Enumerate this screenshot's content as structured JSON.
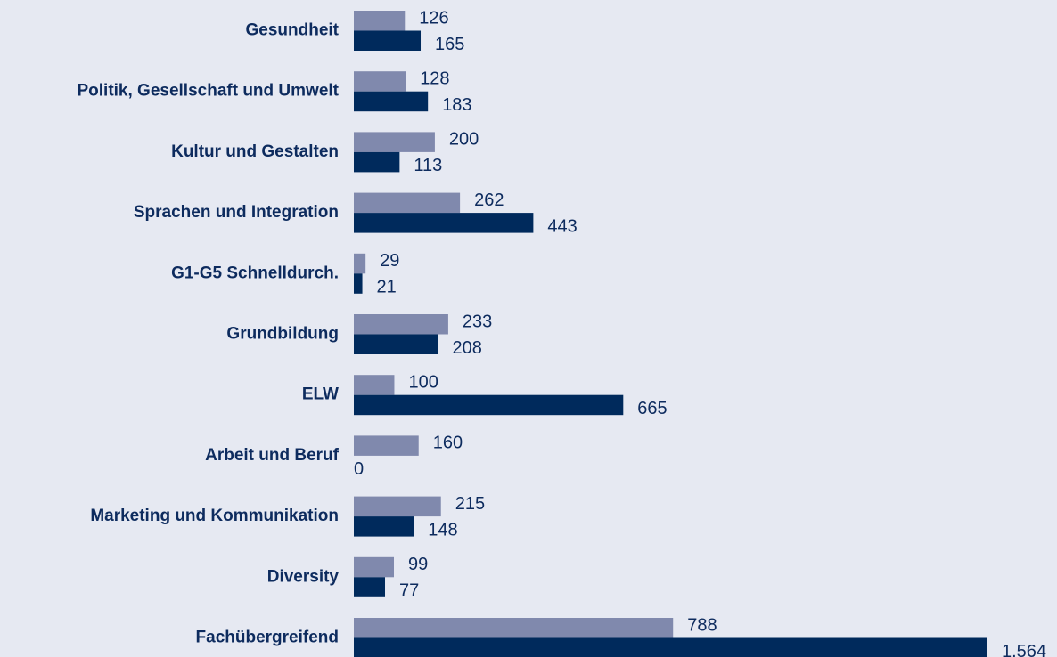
{
  "chart_data": {
    "type": "bar",
    "orientation": "horizontal",
    "categories": [
      "Gesundheit",
      "Politik, Gesellschaft und Umwelt",
      "Kultur und Gestalten",
      "Sprachen und Integration",
      "G1-G5 Schnelldurch.",
      "Grundbildung",
      "ELW",
      "Arbeit und Beruf",
      "Marketing und Kommunikation",
      "Diversity",
      "Fachübergreifend"
    ],
    "series": [
      {
        "color": "#8089ad",
        "values": [
          126,
          128,
          200,
          262,
          29,
          233,
          100,
          160,
          215,
          99,
          788
        ]
      },
      {
        "color": "#002a5c",
        "values": [
          165,
          183,
          113,
          443,
          21,
          208,
          665,
          0,
          148,
          77,
          1564
        ],
        "value_labels": [
          "165",
          "183",
          "113",
          "443",
          "21",
          "208",
          "665",
          "0",
          "148",
          "77",
          "1.564"
        ]
      }
    ]
  }
}
